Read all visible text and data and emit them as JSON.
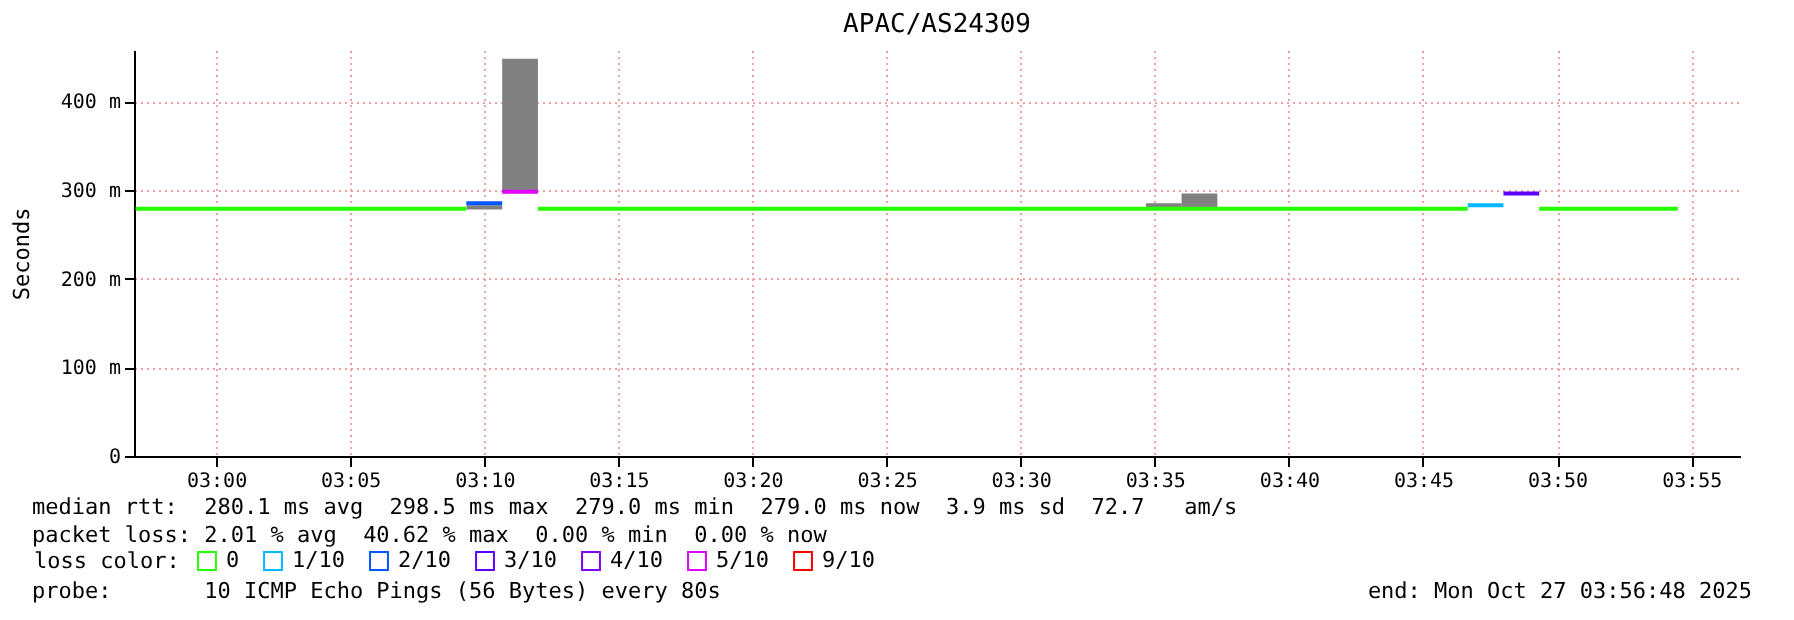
{
  "chart_data": {
    "type": "line",
    "title": "APAC/AS24309",
    "ylabel": "Seconds",
    "xlim": [
      2.949,
      3.947
    ],
    "xticks": [
      {
        "value": 3,
        "label": "03:00"
      },
      {
        "value": 3.0833,
        "label": "03:05"
      },
      {
        "value": 3.1667,
        "label": "03:10"
      },
      {
        "value": 3.25,
        "label": "03:15"
      },
      {
        "value": 3.3333,
        "label": "03:20"
      },
      {
        "value": 3.4167,
        "label": "03:25"
      },
      {
        "value": 3.5,
        "label": "03:30"
      },
      {
        "value": 3.5833,
        "label": "03:35"
      },
      {
        "value": 3.6667,
        "label": "03:40"
      },
      {
        "value": 3.75,
        "label": "03:45"
      },
      {
        "value": 3.8333,
        "label": "03:50"
      },
      {
        "value": 3.9167,
        "label": "03:55"
      }
    ],
    "ylim": [
      0,
      458
    ],
    "yticks": [
      0,
      {
        "value": 100,
        "label": "100 m"
      },
      {
        "value": 200,
        "label": "200 m"
      },
      {
        "value": 300,
        "label": "300 m"
      },
      {
        "value": 400,
        "label": "400 m"
      }
    ],
    "grid": true,
    "legend": "bottom",
    "legend_title": "loss color:",
    "series": [
      {
        "type": "bar",
        "color": "#808080",
        "x": [
          3.1667,
          3.1889,
          3.5889,
          3.6111
        ],
        "base": [
          278,
          298,
          279,
          279
        ],
        "values": [
          5,
          150,
          6,
          17
        ]
      },
      {
        "name": "0",
        "color": "#26ff00",
        "x": [
          2.95,
          3.1555,
          3.1556,
          3.2,
          3.7778,
          3.7779,
          3.8222,
          3.9083
        ],
        "values": [
          279,
          279,
          null,
          279,
          279,
          null,
          279,
          279
        ]
      },
      {
        "name": "1/10",
        "color": "#00b8ff",
        "x": [
          3.7778,
          3.8
        ],
        "values": [
          283,
          283
        ]
      },
      {
        "name": "2/10",
        "color": "#0059ff",
        "x": [
          3.1555,
          3.1778
        ],
        "values": [
          285,
          285
        ]
      },
      {
        "name": "3/10",
        "color": "#5e00ff",
        "x": [
          3.8,
          3.8222
        ],
        "values": [
          296,
          296
        ]
      },
      {
        "name": "4/10",
        "color": "#7e00ff"
      },
      {
        "name": "5/10",
        "color": "#dd00ff",
        "x": [
          3.1778,
          3.2
        ],
        "values": [
          298,
          298
        ]
      },
      {
        "name": "9/10",
        "color": "#ff0000"
      }
    ],
    "annotations": [
      "median rtt:  280.1 ms avg  298.5 ms max  279.0 ms min  279.0 ms now  3.9 ms sd  72.7   am/s",
      "packet loss: 2.01 % avg  40.62 % max  0.00 % min  0.00 % now",
      "probe:       10 ICMP Echo Pings (56 Bytes) every 80s",
      "end: Mon Oct 27 03:56:48 2025"
    ]
  }
}
